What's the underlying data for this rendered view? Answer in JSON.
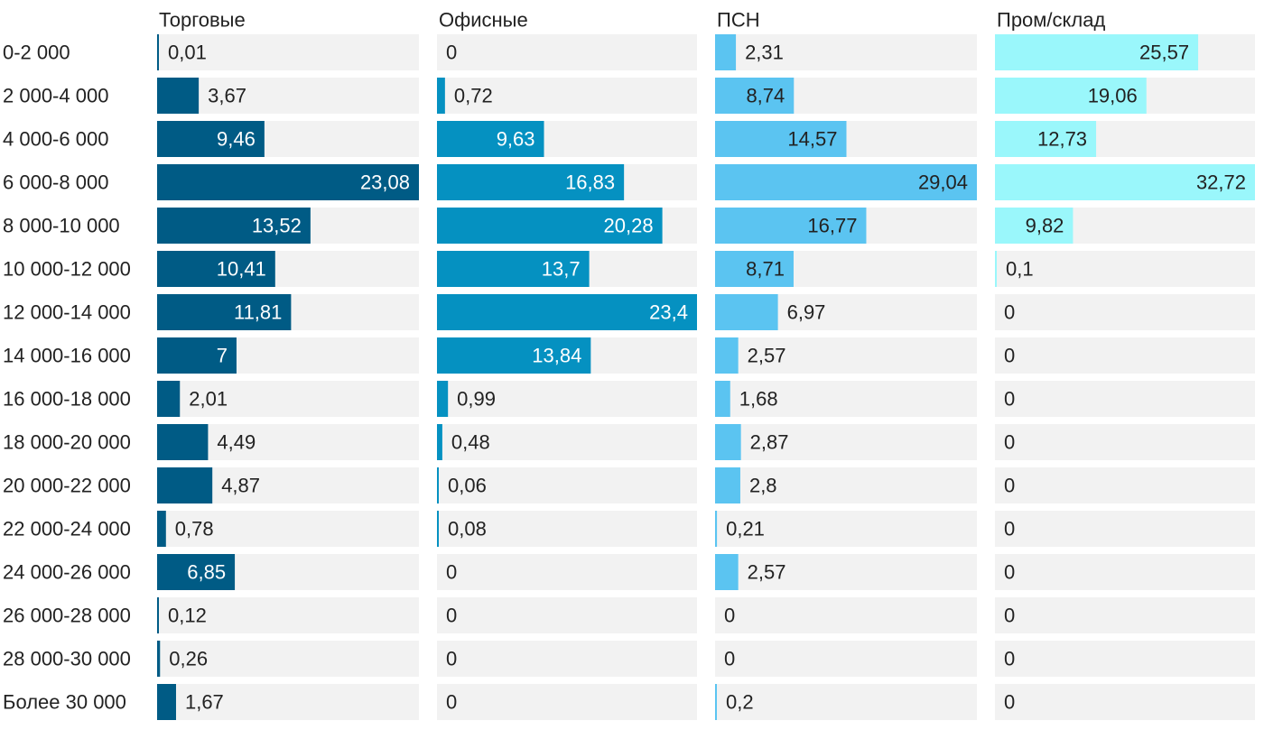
{
  "chart_data": {
    "type": "bar",
    "orientation": "horizontal",
    "layout": "small-multiples",
    "categories": [
      "0-2 000",
      "2 000-4 000",
      "4 000-6 000",
      "6 000-8 000",
      "8 000-10 000",
      "10 000-12 000",
      "12 000-14 000",
      "14 000-16 000",
      "16 000-18 000",
      "18 000-20 000",
      "20 000-22 000",
      "22 000-24 000",
      "24 000-26 000",
      "26 000-28 000",
      "28 000-30 000",
      "Более 30 000"
    ],
    "series": [
      {
        "name": "Торговые",
        "color": "#005b85",
        "values": [
          0.01,
          3.67,
          9.46,
          23.08,
          13.52,
          10.41,
          11.81,
          7,
          2.01,
          4.49,
          4.87,
          0.78,
          6.85,
          0.12,
          0.26,
          1.67
        ],
        "labels": [
          "0,01",
          "3,67",
          "9,46",
          "23,08",
          "13,52",
          "10,41",
          "11,81",
          "7",
          "2,01",
          "4,49",
          "4,87",
          "0,78",
          "6,85",
          "0,12",
          "0,26",
          "1,67"
        ]
      },
      {
        "name": "Офисные",
        "color": "#0591c1",
        "values": [
          0,
          0.72,
          9.63,
          16.83,
          20.28,
          13.7,
          23.4,
          13.84,
          0.99,
          0.48,
          0.06,
          0.08,
          0,
          0,
          0,
          0
        ],
        "labels": [
          "0",
          "0,72",
          "9,63",
          "16,83",
          "20,28",
          "13,7",
          "23,4",
          "13,84",
          "0,99",
          "0,48",
          "0,06",
          "0,08",
          "0",
          "0",
          "0",
          "0"
        ]
      },
      {
        "name": "ПСН",
        "color": "#5bc4f1",
        "values": [
          2.31,
          8.74,
          14.57,
          29.04,
          16.77,
          8.71,
          6.97,
          2.57,
          1.68,
          2.87,
          2.8,
          0.21,
          2.57,
          0,
          0,
          0.2
        ],
        "labels": [
          "2,31",
          "8,74",
          "14,57",
          "29,04",
          "16,77",
          "8,71",
          "6,97",
          "2,57",
          "1,68",
          "2,87",
          "2,8",
          "0,21",
          "2,57",
          "0",
          "0",
          "0,2"
        ]
      },
      {
        "name": "Пром/склад",
        "color": "#9af7fb",
        "values": [
          25.57,
          19.06,
          12.73,
          32.72,
          9.82,
          0.1,
          0,
          0,
          0,
          0,
          0,
          0,
          0,
          0,
          0,
          0
        ],
        "labels": [
          "25,57",
          "19,06",
          "12,73",
          "32,72",
          "9,82",
          "0,1",
          "0",
          "0",
          "0",
          "0",
          "0",
          "0",
          "0",
          "0",
          "0",
          "0"
        ]
      }
    ],
    "track_color": "#f2f2f2",
    "label_color_dark": "#222222",
    "label_color_light": "#ffffff"
  }
}
